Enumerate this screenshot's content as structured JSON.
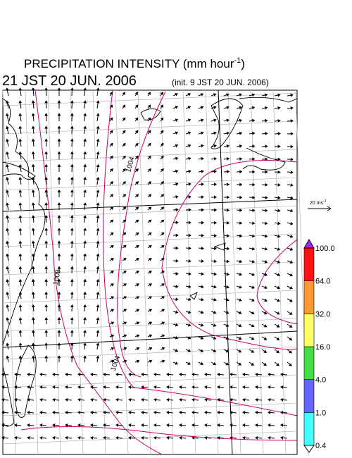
{
  "header": {
    "title": "PRECIPITATION INTENSITY (mm hour",
    "title_exponent": "-1",
    "title_close": ")",
    "valid_time": "21 JST 20 JUN. 2006",
    "init_time": "(init. 9 JST 20 JUN. 2006)"
  },
  "vector_scale": {
    "label": "20 ms",
    "exponent": "-1"
  },
  "contour_labels": [
    "1004",
    "1008",
    "1004"
  ],
  "colorbar": {
    "labels": [
      "0.4",
      "1.0",
      "4.0",
      "16.0",
      "32.0",
      "64.0",
      "100.0"
    ],
    "colors": [
      "#ffffff",
      "#44ffff",
      "#6666ff",
      "#44dd44",
      "#ffff66",
      "#ff9933",
      "#ff1111",
      "#aa22ff"
    ]
  }
}
